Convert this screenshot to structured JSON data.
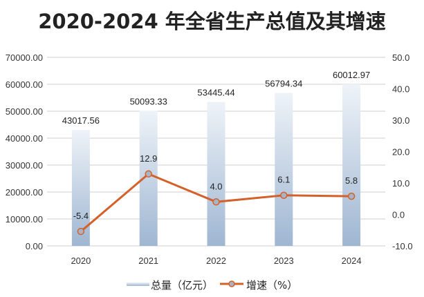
{
  "chart_data": {
    "type": "bar+line",
    "title": "2020-2024 年全省生产总值及其增速",
    "categories": [
      "2020",
      "2021",
      "2022",
      "2023",
      "2024"
    ],
    "series": [
      {
        "name": "总量（亿元）",
        "type": "bar",
        "axis": "left",
        "values": [
          43017.56,
          50093.33,
          53445.44,
          56794.34,
          60012.97
        ],
        "labels": [
          "43017.56",
          "50093.33",
          "53445.44",
          "56794.34",
          "60012.97"
        ]
      },
      {
        "name": "增速（%）",
        "type": "line",
        "axis": "right",
        "values": [
          -5.4,
          12.9,
          4.0,
          6.1,
          5.8
        ],
        "labels": [
          "-5.4",
          "12.9",
          "4.0",
          "6.1",
          "5.8"
        ]
      }
    ],
    "left_axis": {
      "ylim": [
        0,
        70000
      ],
      "ticks": [
        "0.00",
        "10000.00",
        "20000.00",
        "30000.00",
        "40000.00",
        "50000.00",
        "60000.00",
        "70000.00"
      ]
    },
    "right_axis": {
      "ylim": [
        -10,
        50
      ],
      "ticks": [
        "-10.0",
        "0.0",
        "10.0",
        "20.0",
        "30.0",
        "40.0",
        "50.0"
      ]
    },
    "grid": true,
    "legend": "bottom",
    "colors": {
      "bar_top": "#eef3f8",
      "bar_bottom": "#9fb6d2",
      "line": "#d4602a",
      "marker_fill": "#a9b3c4",
      "grid": "#cfcfcf"
    }
  }
}
